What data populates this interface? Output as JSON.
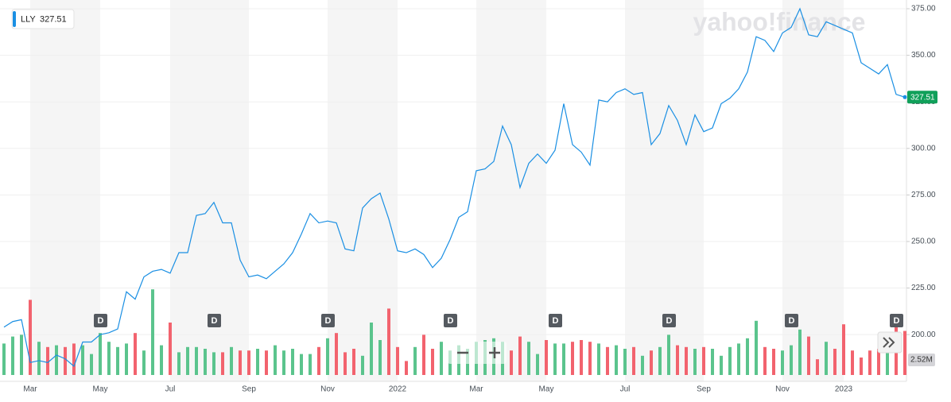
{
  "chart_data": {
    "type": "line",
    "ticker": "LLY",
    "watermark": "yahoo!finance",
    "categories": [
      null,
      null,
      null,
      "Mar",
      null,
      null,
      null,
      null,
      null,
      null,
      null,
      "May",
      null,
      null,
      null,
      null,
      null,
      null,
      null,
      "Jul",
      null,
      null,
      null,
      null,
      null,
      null,
      null,
      null,
      "Sep",
      null,
      null,
      null,
      null,
      null,
      null,
      null,
      null,
      "Nov",
      null,
      null,
      null,
      null,
      null,
      null,
      null,
      "2022",
      null,
      null,
      null,
      null,
      null,
      null,
      null,
      null,
      "Mar",
      null,
      null,
      null,
      null,
      null,
      null,
      null,
      "May",
      null,
      null,
      null,
      null,
      null,
      null,
      null,
      null,
      "Jul",
      null,
      null,
      null,
      null,
      null,
      null,
      null,
      null,
      "Sep",
      null,
      null,
      null,
      null,
      null,
      null,
      null,
      null,
      "Nov",
      null,
      null,
      null,
      null,
      null,
      null,
      "2023",
      null,
      null,
      null,
      null,
      null,
      null,
      null
    ],
    "series": [
      {
        "name": "LLY",
        "color": "#1a8fe3",
        "values": [
          204,
          207,
          208,
          185,
          186,
          185,
          189,
          187,
          183,
          196,
          196,
          200,
          201,
          203,
          223,
          219,
          231,
          234,
          235,
          233,
          244,
          244,
          264,
          265,
          271,
          260,
          260,
          240,
          231,
          232,
          230,
          234,
          238,
          244,
          254,
          265,
          260,
          261,
          260,
          246,
          245,
          268,
          273,
          276,
          262,
          245,
          244,
          246,
          243,
          236,
          241,
          251,
          263,
          266,
          288,
          289,
          293,
          312,
          302,
          279,
          292,
          297,
          292,
          299,
          324,
          302,
          298,
          291,
          326,
          325,
          330,
          332,
          329,
          330,
          302,
          308,
          323,
          315,
          302,
          318,
          309,
          311,
          324,
          327,
          332,
          341,
          360,
          358,
          352,
          362,
          365,
          375,
          361,
          360,
          368,
          366,
          364,
          362,
          346,
          343,
          340,
          345,
          329,
          327.51
        ]
      }
    ],
    "volume": {
      "up_color": "#5bc48d",
      "down_color": "#f2636e",
      "values": [
        1.8,
        2.2,
        2.3,
        4.3,
        1.9,
        1.6,
        1.7,
        1.6,
        1.8,
        1.7,
        1.2,
        2.4,
        1.9,
        1.6,
        1.8,
        2.4,
        1.4,
        4.9,
        1.7,
        3.0,
        1.3,
        1.6,
        1.6,
        1.5,
        1.3,
        1.3,
        1.6,
        1.4,
        1.4,
        1.5,
        1.4,
        1.7,
        1.4,
        1.5,
        1.2,
        1.2,
        1.6,
        2.1,
        2.4,
        1.3,
        1.5,
        1.1,
        3.0,
        2.0,
        3.8,
        1.6,
        0.8,
        1.6,
        2.3,
        1.5,
        1.9,
        1.4,
        1.7,
        1.5,
        1.9,
        2.0,
        2.1,
        1.9,
        1.4,
        2.2,
        1.9,
        1.2,
        2.0,
        1.8,
        1.8,
        1.9,
        2.0,
        1.9,
        1.8,
        1.6,
        1.7,
        1.5,
        1.6,
        1.1,
        1.4,
        1.6,
        2.3,
        1.7,
        1.6,
        1.5,
        1.6,
        1.5,
        1.1,
        1.6,
        1.8,
        2.1,
        3.1,
        1.6,
        1.5,
        1.4,
        1.7,
        2.6,
        2.2,
        0.9,
        1.9,
        1.5,
        2.9,
        1.4,
        1.0,
        1.4,
        1.5,
        1.7,
        3.4,
        2.52
      ],
      "last_label": "2.52M"
    },
    "dividends": {
      "label": "D",
      "at": [
        11,
        24,
        37,
        51,
        63,
        76,
        90,
        102
      ]
    },
    "ylim": [
      178.3,
      379.7
    ],
    "yticks": [
      {
        "value": 200,
        "label": "200.00"
      },
      {
        "value": 225,
        "label": "225.00"
      },
      {
        "value": 250,
        "label": "250.00"
      },
      {
        "value": 275,
        "label": "275.00"
      },
      {
        "value": 300,
        "label": "300.00"
      },
      {
        "value": 325,
        "label": "325.00"
      },
      {
        "value": 350,
        "label": "350.00"
      },
      {
        "value": 375,
        "label": "375.00"
      }
    ],
    "grid": true
  }
}
